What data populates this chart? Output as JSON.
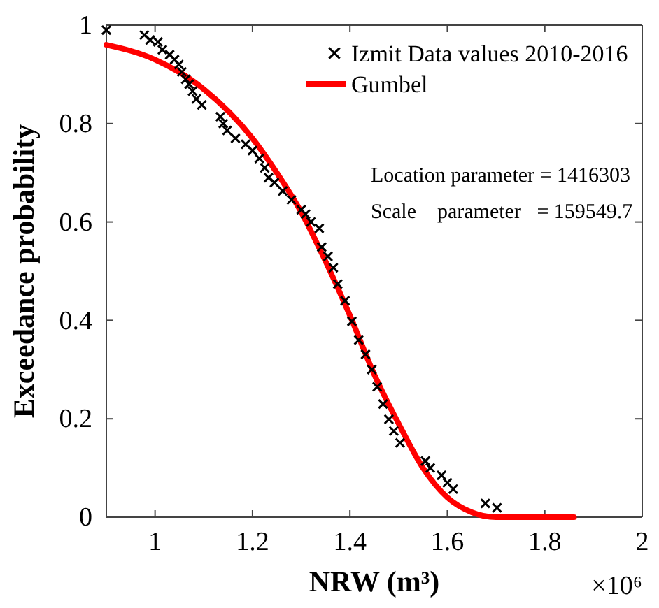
{
  "chart_data": {
    "type": "scatter",
    "xlabel": "NRW (m³)",
    "ylabel": "Exceedance probability",
    "xlim": [
      0.9,
      2
    ],
    "ylim": [
      0,
      1
    ],
    "xticks": [
      1,
      1.2,
      1.4,
      1.6,
      1.8,
      2
    ],
    "yticks": [
      0,
      0.2,
      0.4,
      0.6,
      0.8,
      1
    ],
    "legend": "top right",
    "grid": false,
    "annotations": [
      "×10⁶",
      "Location parameter = 1416303",
      "Scale    parameter   = 159549.7"
    ],
    "series": [
      {
        "name": "Izmit Data values 2010-2016",
        "marker": "cross",
        "color": "#000000",
        "x": [
          0.9,
          0.978,
          0.99,
          1.006,
          1.015,
          1.03,
          1.04,
          1.049,
          1.055,
          1.063,
          1.07,
          1.077,
          1.085,
          1.096,
          1.134,
          1.14,
          1.148,
          1.165,
          1.186,
          1.2,
          1.214,
          1.225,
          1.233,
          1.245,
          1.262,
          1.28,
          1.3,
          1.309,
          1.32,
          1.337,
          1.342,
          1.355,
          1.366,
          1.375,
          1.39,
          1.404,
          1.418,
          1.432,
          1.445,
          1.456,
          1.468,
          1.48,
          1.49,
          1.503,
          1.555,
          1.565,
          1.588,
          1.6,
          1.612,
          1.678,
          1.702
        ],
        "values": [
          0.99,
          0.98,
          0.97,
          0.966,
          0.95,
          0.94,
          0.93,
          0.92,
          0.905,
          0.89,
          0.88,
          0.866,
          0.85,
          0.838,
          0.814,
          0.8,
          0.786,
          0.77,
          0.758,
          0.745,
          0.729,
          0.71,
          0.69,
          0.68,
          0.663,
          0.645,
          0.625,
          0.616,
          0.6,
          0.587,
          0.549,
          0.53,
          0.507,
          0.474,
          0.44,
          0.398,
          0.36,
          0.331,
          0.3,
          0.265,
          0.23,
          0.199,
          0.175,
          0.151,
          0.114,
          0.1,
          0.085,
          0.07,
          0.057,
          0.028,
          0.019
        ]
      },
      {
        "name": "Gumbel",
        "type": "line",
        "marker": "none",
        "line_style": "solid",
        "color": "#ff0000",
        "x": [
          0.9,
          1.0,
          1.1,
          1.2,
          1.25,
          1.3,
          1.35,
          1.4,
          1.45,
          1.5,
          1.55,
          1.6,
          1.65,
          1.7,
          1.75,
          1.86
        ],
        "values": [
          0.96,
          0.93,
          0.87,
          0.77,
          0.7,
          0.62,
          0.52,
          0.41,
          0.29,
          0.19,
          0.1,
          0.04,
          0.01,
          0.0,
          0.0,
          0.0
        ]
      }
    ]
  }
}
